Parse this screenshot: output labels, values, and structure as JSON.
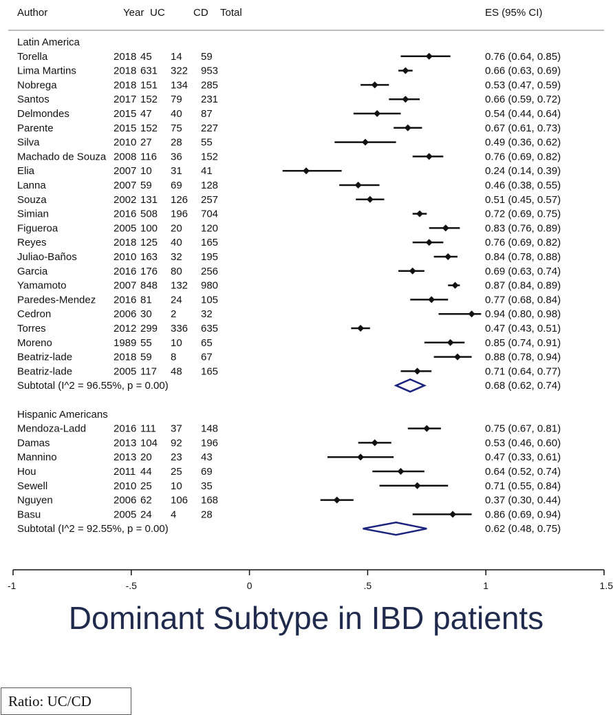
{
  "header": {
    "author": "Author",
    "year": "Year",
    "uc": "UC",
    "cd": "CD",
    "total": "Total",
    "es": "ES (95% CI)"
  },
  "footer": {
    "ratio_label": "Ratio: UC/CD"
  },
  "colors": {
    "marker": "#111111",
    "diamond": "#1a237e",
    "title": "#1f2a4d",
    "rule": "#bdbdbd"
  },
  "chart_data": {
    "type": "forest",
    "title": "Dominant Subtype in IBD patients",
    "xlim": [
      -1,
      1.5
    ],
    "xticks": [
      "-1",
      "-.5",
      "0",
      ".5",
      "1",
      "1.5"
    ],
    "xtick_values": [
      -1,
      -0.5,
      0,
      0.5,
      1,
      1.5
    ],
    "groups": [
      {
        "name": "Latin America",
        "studies": [
          {
            "author": "Torella",
            "year": "2018",
            "uc": "45",
            "cd": "14",
            "total": "59",
            "es": 0.76,
            "lo": 0.64,
            "hi": 0.85,
            "es_text": "0.76 (0.64, 0.85)"
          },
          {
            "author": "Lima Martins",
            "year": "2018",
            "uc": "631",
            "cd": "322",
            "total": "953",
            "es": 0.66,
            "lo": 0.63,
            "hi": 0.69,
            "es_text": "0.66 (0.63, 0.69)"
          },
          {
            "author": "Nobrega",
            "year": "2018",
            "uc": "151",
            "cd": "134",
            "total": "285",
            "es": 0.53,
            "lo": 0.47,
            "hi": 0.59,
            "es_text": "0.53 (0.47, 0.59)"
          },
          {
            "author": "Santos",
            "year": "2017",
            "uc": "152",
            "cd": "79",
            "total": "231",
            "es": 0.66,
            "lo": 0.59,
            "hi": 0.72,
            "es_text": "0.66 (0.59, 0.72)"
          },
          {
            "author": "Delmondes",
            "year": "2015",
            "uc": "47",
            "cd": "40",
            "total": "87",
            "es": 0.54,
            "lo": 0.44,
            "hi": 0.64,
            "es_text": "0.54 (0.44, 0.64)"
          },
          {
            "author": "Parente",
            "year": "2015",
            "uc": "152",
            "cd": "75",
            "total": "227",
            "es": 0.67,
            "lo": 0.61,
            "hi": 0.73,
            "es_text": "0.67 (0.61, 0.73)"
          },
          {
            "author": "Silva",
            "year": "2010",
            "uc": "27",
            "cd": "28",
            "total": "55",
            "es": 0.49,
            "lo": 0.36,
            "hi": 0.62,
            "es_text": "0.49 (0.36, 0.62)"
          },
          {
            "author": "Machado de Souza",
            "year": "2008",
            "uc": "116",
            "cd": "36",
            "total": "152",
            "es": 0.76,
            "lo": 0.69,
            "hi": 0.82,
            "es_text": "0.76 (0.69, 0.82)"
          },
          {
            "author": "Elia",
            "year": "2007",
            "uc": "10",
            "cd": "31",
            "total": "41",
            "es": 0.24,
            "lo": 0.14,
            "hi": 0.39,
            "es_text": "0.24 (0.14, 0.39)"
          },
          {
            "author": "Lanna",
            "year": "2007",
            "uc": "59",
            "cd": "69",
            "total": "128",
            "es": 0.46,
            "lo": 0.38,
            "hi": 0.55,
            "es_text": "0.46 (0.38, 0.55)"
          },
          {
            "author": "Souza",
            "year": "2002",
            "uc": "131",
            "cd": "126",
            "total": "257",
            "es": 0.51,
            "lo": 0.45,
            "hi": 0.57,
            "es_text": "0.51 (0.45, 0.57)"
          },
          {
            "author": "Simian",
            "year": "2016",
            "uc": "508",
            "cd": "196",
            "total": "704",
            "es": 0.72,
            "lo": 0.69,
            "hi": 0.75,
            "es_text": "0.72 (0.69, 0.75)"
          },
          {
            "author": "Figueroa",
            "year": "2005",
            "uc": "100",
            "cd": "20",
            "total": "120",
            "es": 0.83,
            "lo": 0.76,
            "hi": 0.89,
            "es_text": "0.83 (0.76, 0.89)"
          },
          {
            "author": "Reyes",
            "year": "2018",
            "uc": "125",
            "cd": "40",
            "total": "165",
            "es": 0.76,
            "lo": 0.69,
            "hi": 0.82,
            "es_text": "0.76 (0.69, 0.82)"
          },
          {
            "author": "Juliao-Baños",
            "year": "2010",
            "uc": "163",
            "cd": "32",
            "total": "195",
            "es": 0.84,
            "lo": 0.78,
            "hi": 0.88,
            "es_text": "0.84 (0.78, 0.88)"
          },
          {
            "author": "Garcia",
            "year": "2016",
            "uc": "176",
            "cd": "80",
            "total": "256",
            "es": 0.69,
            "lo": 0.63,
            "hi": 0.74,
            "es_text": "0.69 (0.63, 0.74)"
          },
          {
            "author": "Yamamoto",
            "year": "2007",
            "uc": "848",
            "cd": "132",
            "total": "980",
            "es": 0.87,
            "lo": 0.84,
            "hi": 0.89,
            "es_text": "0.87 (0.84, 0.89)"
          },
          {
            "author": "Paredes-Mendez",
            "year": "2016",
            "uc": "81",
            "cd": "24",
            "total": "105",
            "es": 0.77,
            "lo": 0.68,
            "hi": 0.84,
            "es_text": "0.77 (0.68, 0.84)"
          },
          {
            "author": "Cedron",
            "year": "2006",
            "uc": "30",
            "cd": "2",
            "total": "32",
            "es": 0.94,
            "lo": 0.8,
            "hi": 0.98,
            "es_text": "0.94 (0.80, 0.98)"
          },
          {
            "author": "Torres",
            "year": "2012",
            "uc": "299",
            "cd": "336",
            "total": "635",
            "es": 0.47,
            "lo": 0.43,
            "hi": 0.51,
            "es_text": "0.47 (0.43, 0.51)"
          },
          {
            "author": "Moreno",
            "year": "1989",
            "uc": "55",
            "cd": "10",
            "total": "65",
            "es": 0.85,
            "lo": 0.74,
            "hi": 0.91,
            "es_text": "0.85 (0.74, 0.91)"
          },
          {
            "author": "Beatriz-lade",
            "year": "2018",
            "uc": "59",
            "cd": "8",
            "total": "67",
            "es": 0.88,
            "lo": 0.78,
            "hi": 0.94,
            "es_text": "0.88 (0.78, 0.94)"
          },
          {
            "author": "Beatriz-lade",
            "year": "2005",
            "uc": "117",
            "cd": "48",
            "total": "165",
            "es": 0.71,
            "lo": 0.64,
            "hi": 0.77,
            "es_text": "0.71 (0.64, 0.77)"
          }
        ],
        "subtotal": {
          "label": "Subtotal  (I^2 = 96.55%, p = 0.00)",
          "es": 0.68,
          "lo": 0.62,
          "hi": 0.74,
          "es_text": "0.68 (0.62, 0.74)"
        }
      },
      {
        "name": "Hispanic Americans",
        "studies": [
          {
            "author": "Mendoza-Ladd",
            "year": "2016",
            "uc": "111",
            "cd": "37",
            "total": "148",
            "es": 0.75,
            "lo": 0.67,
            "hi": 0.81,
            "es_text": "0.75 (0.67, 0.81)"
          },
          {
            "author": "Damas",
            "year": "2013",
            "uc": "104",
            "cd": "92",
            "total": "196",
            "es": 0.53,
            "lo": 0.46,
            "hi": 0.6,
            "es_text": "0.53 (0.46, 0.60)"
          },
          {
            "author": "Mannino",
            "year": "2013",
            "uc": "20",
            "cd": "23",
            "total": "43",
            "es": 0.47,
            "lo": 0.33,
            "hi": 0.61,
            "es_text": "0.47 (0.33, 0.61)"
          },
          {
            "author": "Hou",
            "year": "2011",
            "uc": "44",
            "cd": "25",
            "total": "69",
            "es": 0.64,
            "lo": 0.52,
            "hi": 0.74,
            "es_text": "0.64 (0.52, 0.74)"
          },
          {
            "author": "Sewell",
            "year": "2010",
            "uc": "25",
            "cd": "10",
            "total": "35",
            "es": 0.71,
            "lo": 0.55,
            "hi": 0.84,
            "es_text": "0.71 (0.55, 0.84)"
          },
          {
            "author": "Nguyen",
            "year": "2006",
            "uc": "62",
            "cd": "106",
            "total": "168",
            "es": 0.37,
            "lo": 0.3,
            "hi": 0.44,
            "es_text": "0.37 (0.30, 0.44)"
          },
          {
            "author": "Basu",
            "year": "2005",
            "uc": "24",
            "cd": "4",
            "total": "28",
            "es": 0.86,
            "lo": 0.69,
            "hi": 0.94,
            "es_text": "0.86 (0.69, 0.94)"
          }
        ],
        "subtotal": {
          "label": "Subtotal  (I^2 = 92.55%, p = 0.00)",
          "es": 0.62,
          "lo": 0.48,
          "hi": 0.75,
          "es_text": "0.62 (0.48, 0.75)"
        }
      }
    ]
  }
}
